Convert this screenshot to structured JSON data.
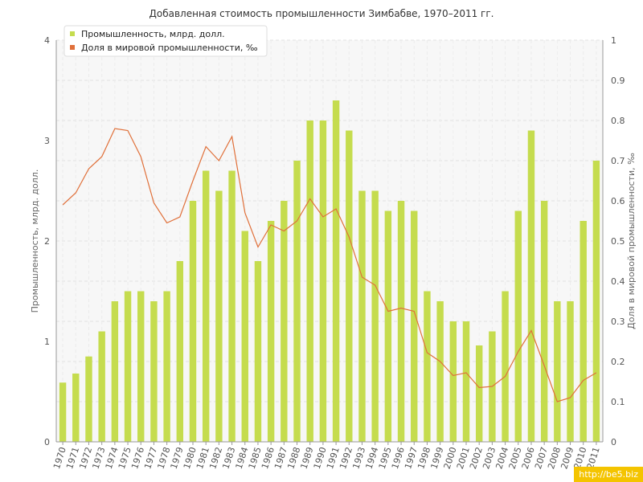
{
  "chart_data": {
    "type": "bar",
    "title": "Добавленная стоимость промышленности Зимбабве, 1970–2011 гг.",
    "ylabel": "Промышленность, млрд. долл.",
    "y2label": "Доля в мировой промышленности, ‰",
    "ylim": [
      0,
      4
    ],
    "y2lim": [
      0,
      1
    ],
    "yticks": [
      "0",
      "1",
      "2",
      "3",
      "4"
    ],
    "y2ticks": [
      "0",
      "0.1",
      "0.2",
      "0.3",
      "0.4",
      "0.5",
      "0.6",
      "0.7",
      "0.8",
      "0.9",
      "1"
    ],
    "grid": true,
    "legend_position": "top-left",
    "categories": [
      "1970",
      "1971",
      "1972",
      "1973",
      "1974",
      "1975",
      "1976",
      "1977",
      "1978",
      "1979",
      "1980",
      "1981",
      "1982",
      "1983",
      "1984",
      "1985",
      "1986",
      "1987",
      "1988",
      "1989",
      "1990",
      "1991",
      "1992",
      "1993",
      "1994",
      "1995",
      "1996",
      "1997",
      "1998",
      "1999",
      "2000",
      "2001",
      "2002",
      "2003",
      "2004",
      "2005",
      "2006",
      "2007",
      "2008",
      "2009",
      "2010",
      "2011"
    ],
    "series": [
      {
        "name": "Промышленность, млрд. долл.",
        "type": "bar",
        "axis": "left",
        "color": "#c5dc4e",
        "values": [
          0.59,
          0.68,
          0.85,
          1.1,
          1.4,
          1.5,
          1.5,
          1.4,
          1.5,
          1.8,
          2.4,
          2.7,
          2.5,
          2.7,
          2.1,
          1.8,
          2.2,
          2.4,
          2.8,
          3.2,
          3.2,
          3.4,
          3.1,
          2.5,
          2.5,
          2.3,
          2.4,
          2.3,
          1.5,
          1.4,
          1.2,
          1.2,
          0.96,
          1.1,
          1.5,
          2.3,
          3.1,
          2.4,
          1.4,
          1.4,
          2.2,
          2.8
        ]
      },
      {
        "name": "Доля в мировой промышленности, ‰",
        "type": "line",
        "axis": "right",
        "color": "#e0703a",
        "values": [
          0.59,
          0.62,
          0.68,
          0.71,
          0.78,
          0.775,
          0.71,
          0.595,
          0.545,
          0.56,
          0.65,
          0.735,
          0.7,
          0.76,
          0.57,
          0.485,
          0.54,
          0.525,
          0.55,
          0.605,
          0.56,
          0.58,
          0.51,
          0.41,
          0.39,
          0.325,
          0.333,
          0.325,
          0.222,
          0.2,
          0.165,
          0.172,
          0.135,
          0.138,
          0.163,
          0.225,
          0.277,
          0.19,
          0.1,
          0.11,
          0.153,
          0.172
        ]
      }
    ]
  },
  "watermark": "http://be5.biz"
}
